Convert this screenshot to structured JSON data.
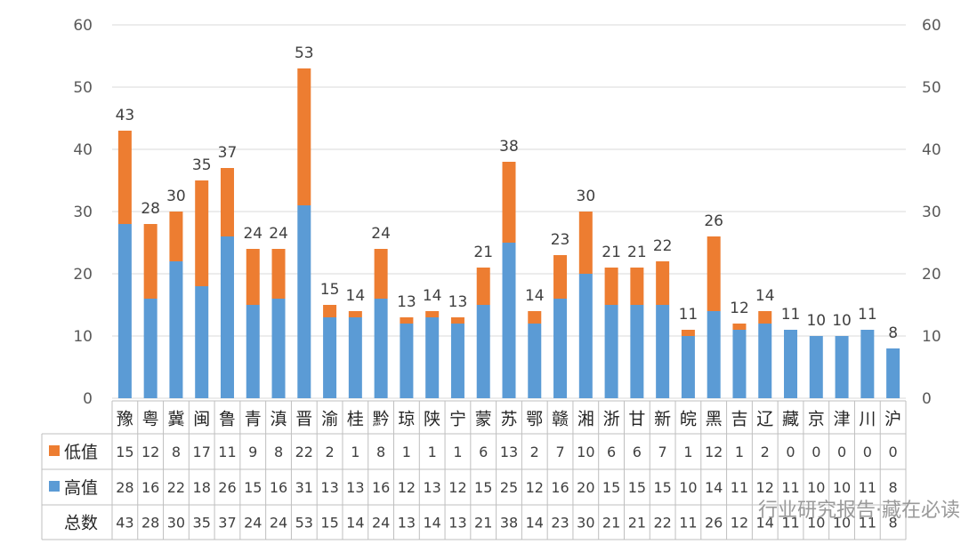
{
  "chart_data": {
    "type": "bar",
    "stacked": true,
    "categories": [
      "豫",
      "粤",
      "冀",
      "闽",
      "鲁",
      "青",
      "滇",
      "晋",
      "渝",
      "桂",
      "黔",
      "琼",
      "陕",
      "宁",
      "蒙",
      "苏",
      "鄂",
      "赣",
      "湘",
      "浙",
      "甘",
      "新",
      "皖",
      "黑",
      "吉",
      "辽",
      "藏",
      "京",
      "津",
      "川",
      "沪"
    ],
    "series": [
      {
        "name": "高值",
        "color": "#5B9BD5",
        "values": [
          28,
          16,
          22,
          18,
          26,
          15,
          16,
          31,
          13,
          13,
          16,
          12,
          13,
          12,
          15,
          25,
          12,
          16,
          20,
          15,
          15,
          15,
          10,
          14,
          11,
          12,
          11,
          10,
          10,
          11,
          8
        ]
      },
      {
        "name": "低值",
        "color": "#ED7D31",
        "values": [
          15,
          12,
          8,
          17,
          11,
          9,
          8,
          22,
          2,
          1,
          8,
          1,
          1,
          1,
          6,
          13,
          2,
          7,
          10,
          6,
          6,
          7,
          1,
          12,
          1,
          2,
          0,
          0,
          0,
          0,
          0
        ]
      }
    ],
    "totals_label": "总数",
    "totals": [
      43,
      28,
      30,
      35,
      37,
      24,
      24,
      53,
      15,
      14,
      24,
      13,
      14,
      13,
      21,
      38,
      14,
      23,
      30,
      21,
      21,
      22,
      11,
      26,
      12,
      14,
      11,
      10,
      10,
      11,
      8
    ],
    "ylim": [
      0,
      60
    ],
    "yticks": [
      0,
      10,
      20,
      30,
      40,
      50,
      60
    ],
    "secondary_yticks": [
      0,
      10,
      20,
      30,
      40,
      50,
      60
    ],
    "grid": true,
    "legend": "data-table"
  },
  "watermark": "行业研究报告·藏在必读"
}
